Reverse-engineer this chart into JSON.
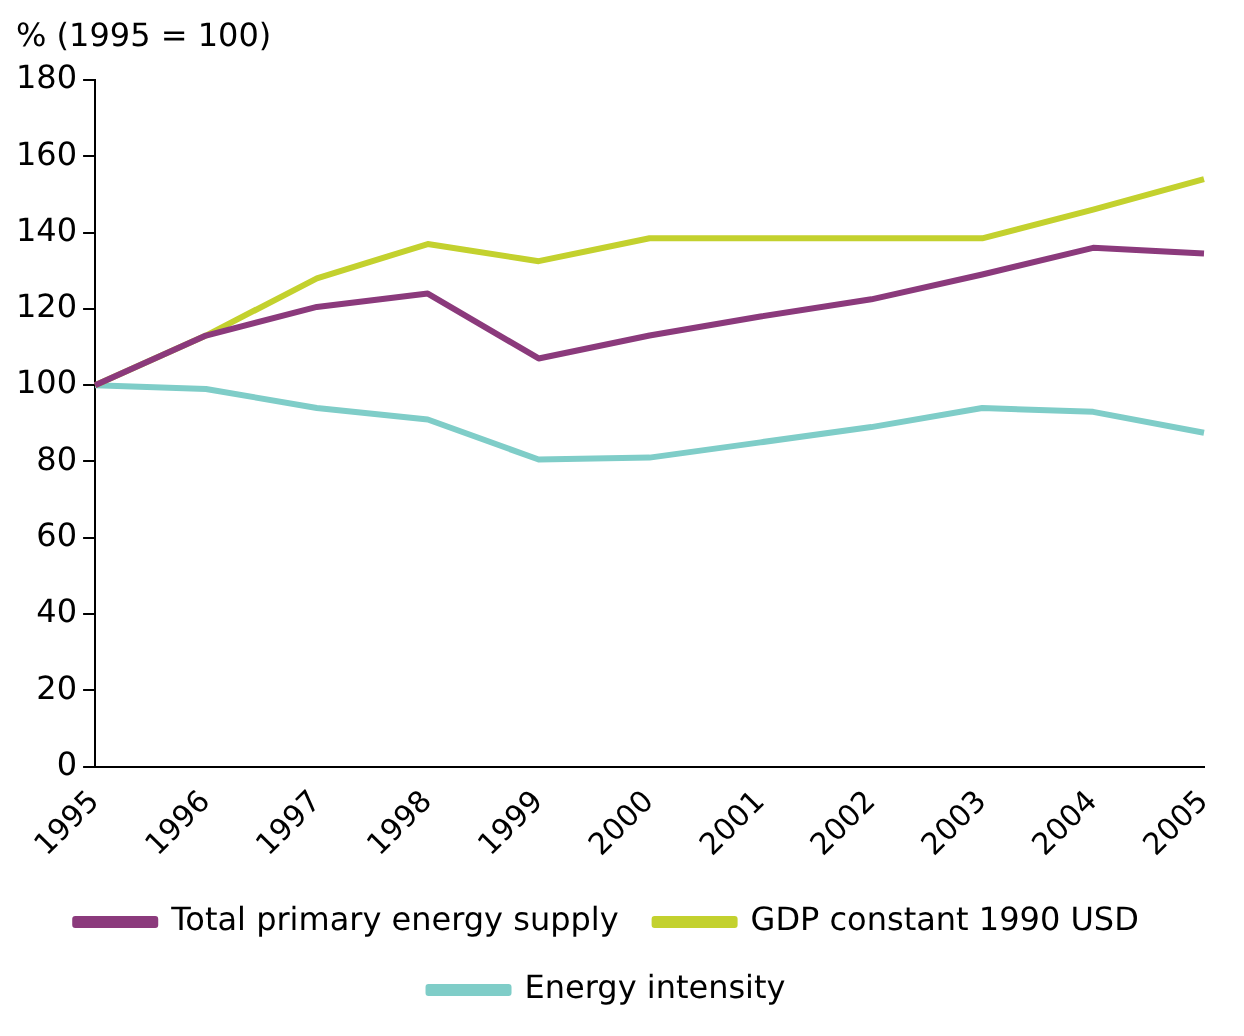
{
  "chart_data": {
    "type": "line",
    "ylabel": "% (1995 = 100)",
    "categories": [
      "1995",
      "1996",
      "1997",
      "1998",
      "1999",
      "2000",
      "2001",
      "2002",
      "2003",
      "2004",
      "2005"
    ],
    "series": [
      {
        "name": "Total primary energy supply",
        "color": "#8b3a7c",
        "values": [
          100,
          113,
          120.5,
          124,
          107,
          113,
          118,
          122.5,
          129,
          136,
          134.5
        ]
      },
      {
        "name": "GDP constant 1990 USD",
        "color": "#c3d12e",
        "values": [
          100,
          113,
          128,
          137,
          132.5,
          138.5,
          138.5,
          138.5,
          138.5,
          146,
          154
        ]
      },
      {
        "name": "Energy intensity",
        "color": "#7fcdc8",
        "values": [
          100,
          99,
          94,
          91,
          80.5,
          81,
          85,
          89,
          94,
          93,
          87.5
        ]
      }
    ],
    "ylim": [
      0,
      180
    ],
    "yticks": [
      0,
      20,
      40,
      60,
      80,
      100,
      120,
      140,
      160,
      180
    ],
    "grid": false,
    "legend": "bottom",
    "marker": "none",
    "line_style": "solid"
  }
}
